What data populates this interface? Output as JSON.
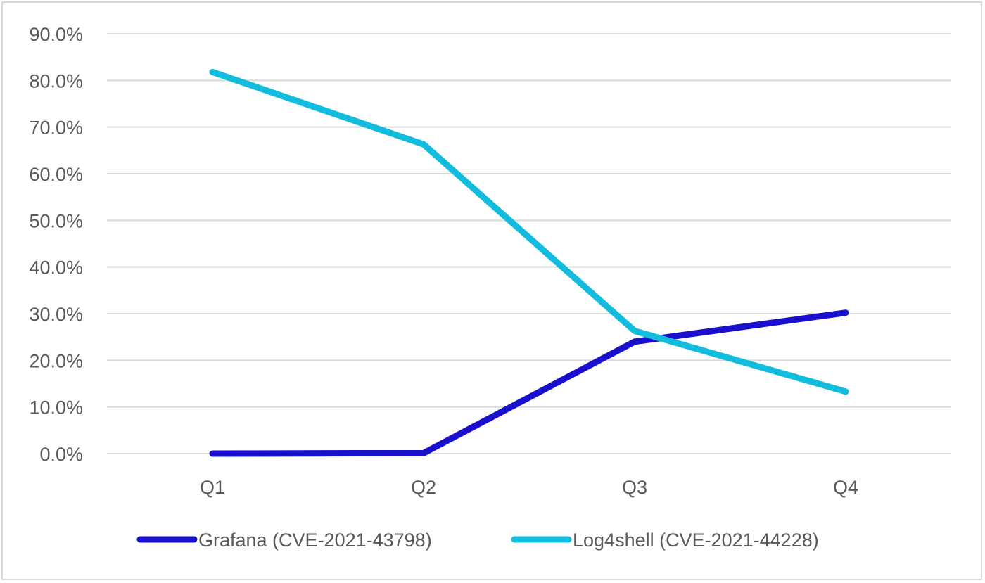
{
  "chart_data": {
    "type": "line",
    "categories": [
      "Q1",
      "Q2",
      "Q3",
      "Q4"
    ],
    "series": [
      {
        "name": "Grafana (CVE-2021-43798)",
        "values": [
          0.0,
          0.1,
          24.0,
          30.2
        ],
        "color": "#1a0fcc"
      },
      {
        "name": "Log4shell (CVE-2021-44228)",
        "values": [
          81.8,
          66.3,
          26.3,
          13.3
        ],
        "color": "#12bcdc"
      }
    ],
    "yticks": [
      "0.0%",
      "10.0%",
      "20.0%",
      "30.0%",
      "40.0%",
      "50.0%",
      "60.0%",
      "70.0%",
      "80.0%",
      "90.0%"
    ],
    "ylim": [
      0,
      90
    ],
    "grid": true,
    "legend_position": "bottom",
    "colors": {
      "grid": "#d9d9d9",
      "text": "#595959",
      "border": "#d9d9d9"
    }
  }
}
